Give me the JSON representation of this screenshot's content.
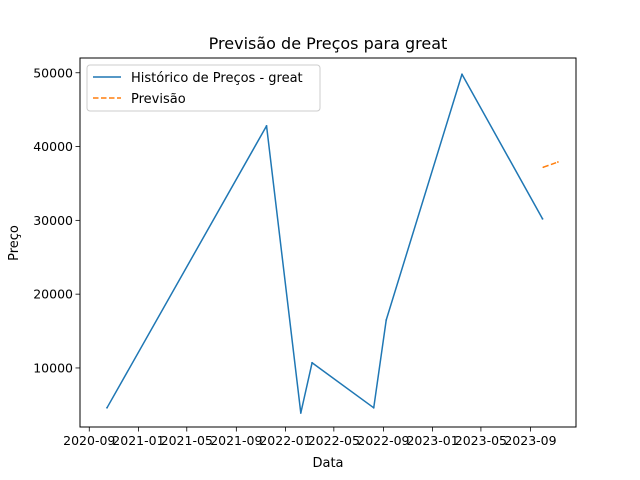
{
  "chart_data": {
    "type": "line",
    "title": "Previsão de Preços para great",
    "xlabel": "Data",
    "ylabel": "Preço",
    "xlim": [
      "2020-08-09",
      "2023-12-23"
    ],
    "ylim": [
      2000,
      52000
    ],
    "x_ticks": [
      "2020-09-01",
      "2021-01-01",
      "2021-05-01",
      "2021-09-01",
      "2022-01-01",
      "2022-05-01",
      "2022-09-01",
      "2023-01-01",
      "2023-05-01",
      "2023-09-01"
    ],
    "x_tick_labels": [
      "2020-09",
      "2021-01",
      "2021-05",
      "2021-09",
      "2022-01",
      "2022-05",
      "2022-09",
      "2023-01",
      "2023-05",
      "2023-09"
    ],
    "y_ticks": [
      10000,
      20000,
      30000,
      40000,
      50000
    ],
    "y_tick_labels": [
      "10000",
      "20000",
      "30000",
      "40000",
      "50000"
    ],
    "grid": false,
    "legend_position": "top-left",
    "series": [
      {
        "name": "Histórico de Preços - great",
        "color": "#1f77b4",
        "style": "solid",
        "points": [
          {
            "x": "2020-10-15",
            "y": 4600
          },
          {
            "x": "2021-11-15",
            "y": 42800
          },
          {
            "x": "2022-02-08",
            "y": 3900
          },
          {
            "x": "2022-03-08",
            "y": 10700
          },
          {
            "x": "2022-08-08",
            "y": 4600
          },
          {
            "x": "2022-09-08",
            "y": 16500
          },
          {
            "x": "2023-03-15",
            "y": 49800
          },
          {
            "x": "2023-10-01",
            "y": 30200
          }
        ]
      },
      {
        "name": "Previsão",
        "color": "#ff7f0e",
        "style": "dashed",
        "points": [
          {
            "x": "2023-10-03",
            "y": 37200
          },
          {
            "x": "2023-11-08",
            "y": 37900
          }
        ]
      }
    ]
  }
}
